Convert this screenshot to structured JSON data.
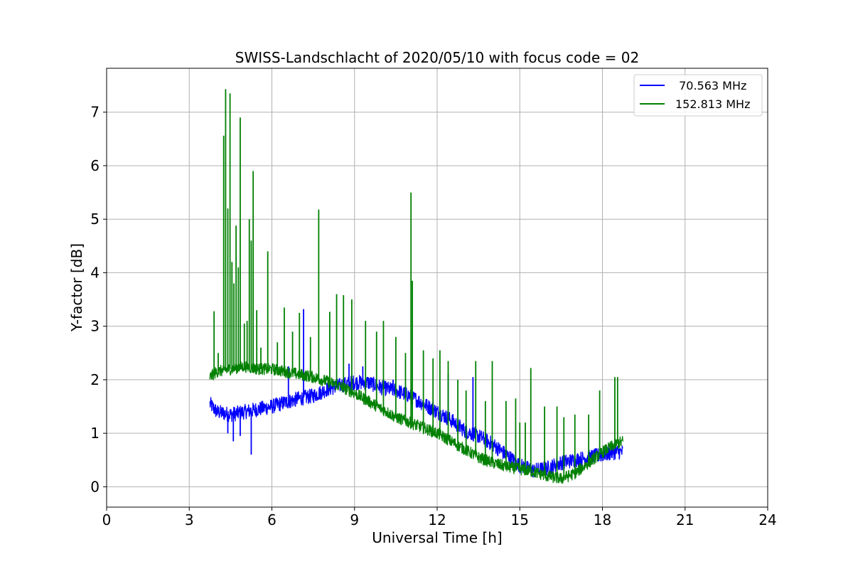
{
  "chart_data": {
    "type": "line",
    "title": "SWISS-Landschlacht of 2020/05/10 with focus code = 02",
    "xlabel": "Universal Time [h]",
    "ylabel": "Y-factor [dB]",
    "xlim": [
      0,
      24
    ],
    "ylim": [
      -0.38,
      7.82
    ],
    "xticks": [
      0,
      3,
      6,
      9,
      12,
      15,
      18,
      21,
      24
    ],
    "yticks": [
      0,
      1,
      2,
      3,
      4,
      5,
      6,
      7
    ],
    "xtick_labels": [
      "0",
      "3",
      "6",
      "9",
      "12",
      "15",
      "18",
      "21",
      "24"
    ],
    "ytick_labels": [
      "0",
      "1",
      "2",
      "3",
      "4",
      "5",
      "6",
      "7"
    ],
    "grid": true,
    "legend_position": "top-right",
    "series": [
      {
        "name": " 70.563 MHz",
        "color": "#0000ff",
        "noise": 0.14,
        "x": [
          3.75,
          4.0,
          4.5,
          5.0,
          5.5,
          6.0,
          6.5,
          7.0,
          7.5,
          8.0,
          8.5,
          9.0,
          9.5,
          10.0,
          10.5,
          11.0,
          11.5,
          12.0,
          12.5,
          13.0,
          13.5,
          14.0,
          14.5,
          15.0,
          15.5,
          16.0,
          16.5,
          17.0,
          17.5,
          18.0,
          18.5,
          18.75
        ],
        "y": [
          1.55,
          1.4,
          1.35,
          1.4,
          1.45,
          1.5,
          1.58,
          1.65,
          1.7,
          1.82,
          1.9,
          1.95,
          1.95,
          1.85,
          1.8,
          1.7,
          1.55,
          1.4,
          1.25,
          1.05,
          0.95,
          0.8,
          0.6,
          0.4,
          0.3,
          0.35,
          0.45,
          0.5,
          0.55,
          0.6,
          0.65,
          0.65
        ],
        "spikes": [
          [
            4.4,
            1.0
          ],
          [
            4.6,
            0.85
          ],
          [
            4.85,
            0.95
          ],
          [
            5.25,
            0.6
          ],
          [
            6.6,
            2.25
          ],
          [
            7.15,
            3.32
          ],
          [
            8.8,
            2.3
          ],
          [
            9.3,
            2.25
          ],
          [
            10.4,
            2.0
          ],
          [
            12.4,
            2.1
          ],
          [
            13.3,
            2.05
          ],
          [
            14.7,
            0.5
          ],
          [
            15.3,
            0.3
          ],
          [
            16.2,
            0.3
          ]
        ]
      },
      {
        "name": "152.813 MHz",
        "color": "#008000",
        "noise": 0.11,
        "x": [
          3.75,
          4.0,
          4.5,
          5.0,
          5.5,
          6.0,
          6.5,
          7.0,
          7.5,
          8.0,
          8.5,
          9.0,
          9.5,
          10.0,
          10.5,
          11.0,
          11.5,
          12.0,
          12.5,
          13.0,
          13.5,
          14.0,
          14.5,
          15.0,
          15.5,
          16.0,
          16.5,
          17.0,
          17.5,
          18.0,
          18.5,
          18.75
        ],
        "y": [
          2.05,
          2.15,
          2.2,
          2.25,
          2.2,
          2.2,
          2.15,
          2.1,
          2.05,
          1.97,
          1.87,
          1.75,
          1.6,
          1.45,
          1.3,
          1.2,
          1.1,
          1.0,
          0.85,
          0.7,
          0.55,
          0.45,
          0.38,
          0.33,
          0.28,
          0.2,
          0.15,
          0.25,
          0.45,
          0.65,
          0.8,
          0.85
        ],
        "spikes": [
          [
            3.9,
            3.28
          ],
          [
            4.05,
            2.5
          ],
          [
            4.25,
            6.56
          ],
          [
            4.32,
            7.43
          ],
          [
            4.4,
            5.2
          ],
          [
            4.48,
            7.35
          ],
          [
            4.55,
            4.2
          ],
          [
            4.62,
            3.8
          ],
          [
            4.7,
            4.88
          ],
          [
            4.78,
            4.1
          ],
          [
            4.85,
            6.9
          ],
          [
            5.0,
            3.05
          ],
          [
            5.1,
            3.1
          ],
          [
            5.18,
            5.0
          ],
          [
            5.25,
            4.6
          ],
          [
            5.32,
            5.9
          ],
          [
            5.45,
            3.3
          ],
          [
            5.6,
            2.6
          ],
          [
            5.85,
            4.4
          ],
          [
            6.2,
            2.7
          ],
          [
            6.45,
            3.35
          ],
          [
            6.75,
            2.9
          ],
          [
            7.0,
            3.25
          ],
          [
            7.4,
            2.8
          ],
          [
            7.7,
            5.18
          ],
          [
            8.1,
            3.27
          ],
          [
            8.35,
            3.6
          ],
          [
            8.6,
            3.58
          ],
          [
            8.9,
            3.5
          ],
          [
            9.4,
            3.1
          ],
          [
            9.8,
            2.9
          ],
          [
            10.05,
            3.1
          ],
          [
            10.5,
            2.8
          ],
          [
            10.85,
            2.5
          ],
          [
            11.05,
            5.5
          ],
          [
            11.1,
            3.85
          ],
          [
            11.5,
            2.55
          ],
          [
            11.85,
            2.4
          ],
          [
            12.1,
            2.55
          ],
          [
            12.4,
            2.35
          ],
          [
            12.75,
            2.0
          ],
          [
            13.05,
            1.8
          ],
          [
            13.4,
            2.35
          ],
          [
            13.75,
            1.6
          ],
          [
            14.0,
            2.35
          ],
          [
            14.5,
            1.6
          ],
          [
            14.85,
            1.65
          ],
          [
            15.0,
            1.2
          ],
          [
            15.2,
            1.2
          ],
          [
            15.4,
            2.22
          ],
          [
            15.9,
            1.5
          ],
          [
            16.35,
            1.5
          ],
          [
            16.6,
            1.3
          ],
          [
            17.0,
            1.35
          ],
          [
            17.5,
            1.35
          ],
          [
            17.9,
            1.8
          ],
          [
            18.45,
            2.05
          ],
          [
            18.55,
            2.05
          ]
        ]
      }
    ]
  }
}
